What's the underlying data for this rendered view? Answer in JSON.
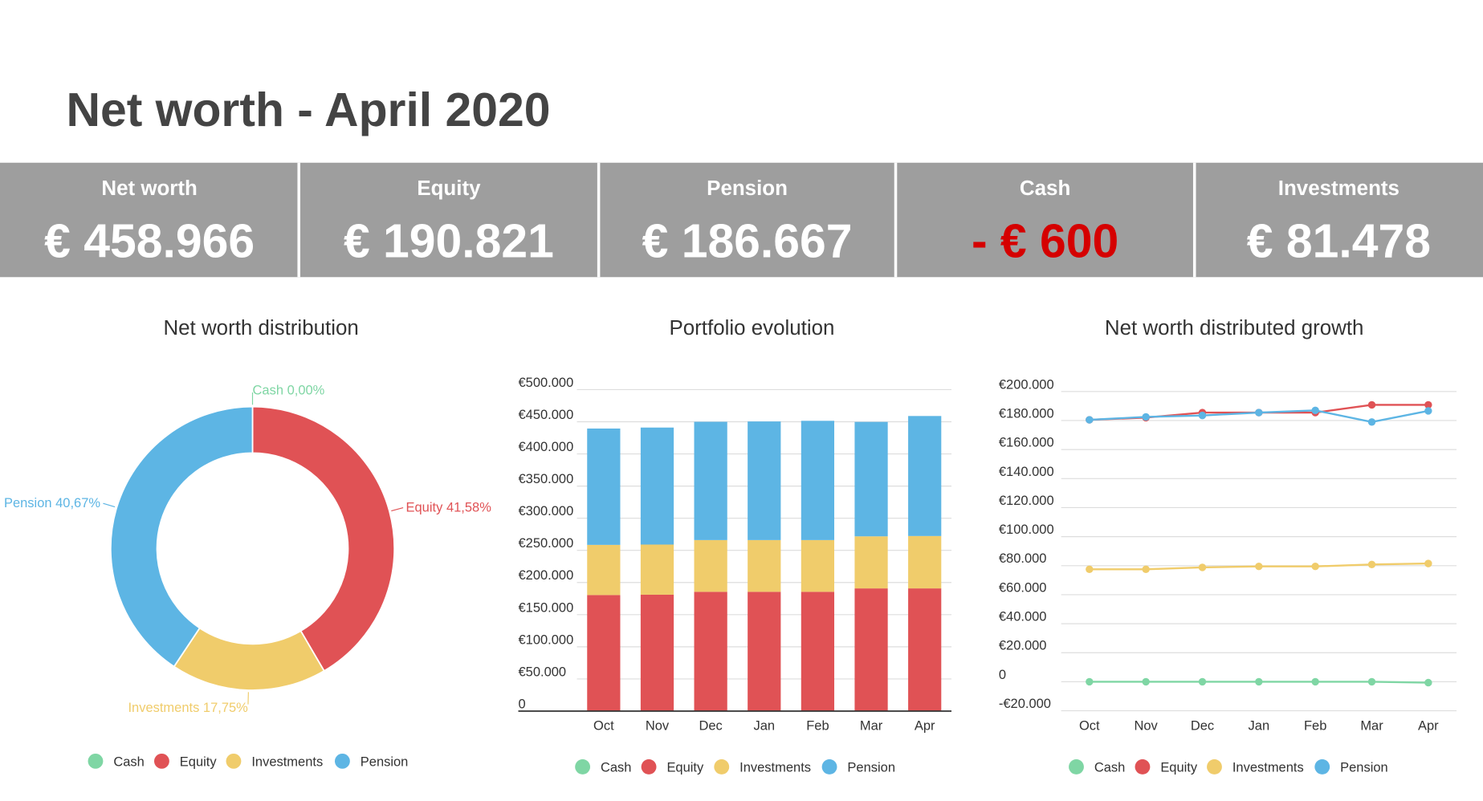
{
  "header": {
    "title": "Net worth - April 2020"
  },
  "kpis": [
    {
      "label": "Net worth",
      "value": "€ 458.966",
      "color": "#ffffff"
    },
    {
      "label": "Equity",
      "value": "€ 190.821",
      "color": "#ffffff"
    },
    {
      "label": "Pension",
      "value": "€ 186.667",
      "color": "#ffffff"
    },
    {
      "label": "Cash",
      "value": "- € 600",
      "color": "#d50000"
    },
    {
      "label": "Investments",
      "value": "€ 81.478",
      "color": "#ffffff"
    }
  ],
  "chart_data": [
    {
      "type": "pie",
      "title": "Net worth distribution",
      "categories": [
        "Cash",
        "Equity",
        "Investments",
        "Pension"
      ],
      "values": [
        0,
        41.58,
        17.75,
        40.67
      ],
      "value_labels": [
        "0,00%",
        "41,58%",
        "17,75%",
        "40,67%"
      ],
      "colors": [
        "#7fd6a4",
        "#e05255",
        "#f0cc6b",
        "#5db5e4"
      ]
    },
    {
      "type": "stacked_bar",
      "title": "Portfolio evolution",
      "categories": [
        "Oct",
        "Nov",
        "Dec",
        "Jan",
        "Feb",
        "Mar",
        "Apr"
      ],
      "series": [
        {
          "name": "Cash",
          "color": "#7fd6a4",
          "values": [
            0,
            0,
            0,
            0,
            0,
            0,
            -600
          ]
        },
        {
          "name": "Equity",
          "color": "#e05255",
          "values": [
            180500,
            181000,
            185500,
            185500,
            185500,
            190800,
            190821
          ]
        },
        {
          "name": "Investments",
          "color": "#f0cc6b",
          "values": [
            78000,
            78000,
            80500,
            80500,
            80500,
            81000,
            81478
          ]
        },
        {
          "name": "Pension",
          "color": "#5db5e4",
          "values": [
            181000,
            182000,
            184000,
            184500,
            185500,
            178000,
            186667
          ]
        }
      ],
      "ylim": [
        0,
        500000
      ],
      "yticks": [
        0,
        {
          "value": 50000,
          "label": "€50.000"
        },
        {
          "value": 100000,
          "label": "€100.000"
        },
        {
          "value": 150000,
          "label": "€150.000"
        },
        {
          "value": 200000,
          "label": "€200.000"
        },
        {
          "value": 250000,
          "label": "€250.000"
        },
        {
          "value": 300000,
          "label": "€300.000"
        },
        {
          "value": 350000,
          "label": "€350.000"
        },
        {
          "value": 400000,
          "label": "€400.000"
        },
        {
          "value": 450000,
          "label": "€450.000"
        },
        {
          "value": 500000,
          "label": "€500.000"
        }
      ],
      "grid": true
    },
    {
      "type": "line",
      "title": "Net worth distributed growth",
      "categories": [
        "Oct",
        "Nov",
        "Dec",
        "Jan",
        "Feb",
        "Mar",
        "Apr"
      ],
      "series": [
        {
          "name": "Cash",
          "color": "#7fd6a4",
          "values": [
            0,
            0,
            0,
            0,
            0,
            0,
            -600
          ]
        },
        {
          "name": "Equity",
          "color": "#e05255",
          "values": [
            180500,
            182000,
            185500,
            185500,
            185500,
            190800,
            190821
          ]
        },
        {
          "name": "Investments",
          "color": "#f0cc6b",
          "values": [
            77500,
            77500,
            78800,
            79500,
            79500,
            80800,
            81478
          ]
        },
        {
          "name": "Pension",
          "color": "#5db5e4",
          "values": [
            180500,
            182500,
            183500,
            185500,
            187000,
            179000,
            186667
          ]
        }
      ],
      "ylim": [
        -20000,
        200000
      ],
      "yticks": [
        {
          "value": -20000,
          "label": "-€20.000"
        },
        0,
        {
          "value": 20000,
          "label": "€20.000"
        },
        {
          "value": 40000,
          "label": "€40.000"
        },
        {
          "value": 60000,
          "label": "€60.000"
        },
        {
          "value": 80000,
          "label": "€80.000"
        },
        {
          "value": 100000,
          "label": "€100.000"
        },
        {
          "value": 120000,
          "label": "€120.000"
        },
        {
          "value": 140000,
          "label": "€140.000"
        },
        {
          "value": 160000,
          "label": "€160.000"
        },
        {
          "value": 180000,
          "label": "€180.000"
        },
        {
          "value": 200000,
          "label": "€200.000"
        }
      ],
      "grid": true
    }
  ]
}
